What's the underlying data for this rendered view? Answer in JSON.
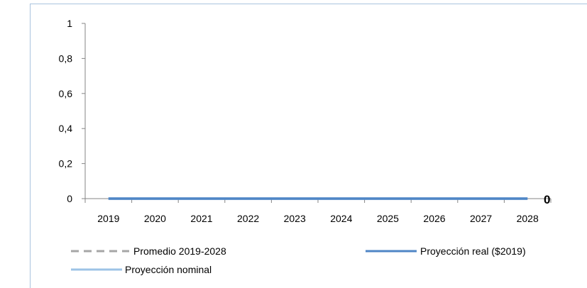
{
  "chart_data": {
    "type": "line",
    "title": "",
    "xlabel": "",
    "ylabel": "",
    "categories": [
      "2019",
      "2020",
      "2021",
      "2022",
      "2023",
      "2024",
      "2025",
      "2026",
      "2027",
      "2028"
    ],
    "ylim": [
      0,
      1
    ],
    "yticks": [
      0,
      0.2,
      0.4,
      0.6,
      0.8,
      1
    ],
    "ytick_labels": [
      "0",
      "0,2",
      "0,4",
      "0,6",
      "0,8",
      "1"
    ],
    "grid": false,
    "legend_position": "bottom",
    "series": [
      {
        "name": "Promedio 2019-2028",
        "values": [
          0,
          0,
          0,
          0,
          0,
          0,
          0,
          0,
          0,
          0
        ],
        "color": "#a6a6a6",
        "style": "dashed"
      },
      {
        "name": "Proyección real ($2019)",
        "values": [
          0,
          0,
          0,
          0,
          0,
          0,
          0,
          0,
          0,
          0
        ],
        "color": "#4f86c6",
        "style": "solid"
      },
      {
        "name": "Proyección nominal",
        "values": [
          0,
          0,
          0,
          0,
          0,
          0,
          0,
          0,
          0,
          0
        ],
        "color": "#9dc3e6",
        "style": "solid"
      }
    ],
    "end_label": "0"
  }
}
